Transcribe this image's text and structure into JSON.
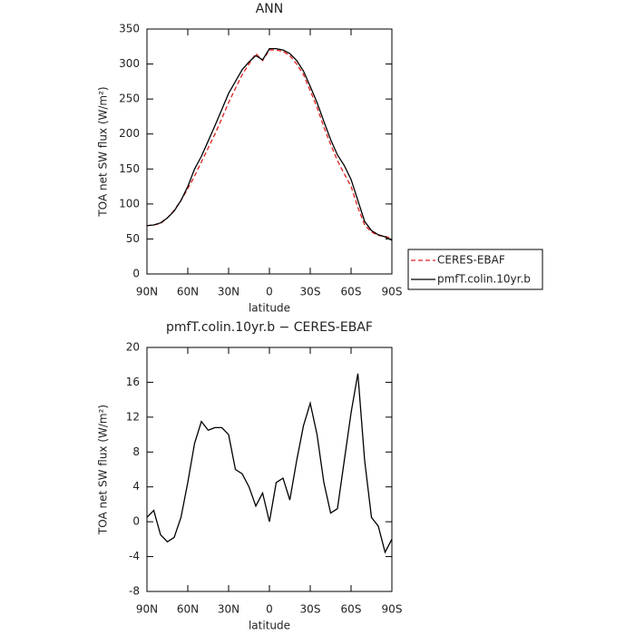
{
  "chart_data": [
    {
      "type": "line",
      "title": "ANN",
      "xlabel": "latitude",
      "ylabel": "TOA net SW flux (W/m²)",
      "x": [
        90,
        85,
        80,
        75,
        70,
        65,
        60,
        55,
        50,
        45,
        40,
        35,
        30,
        25,
        20,
        15,
        10,
        5,
        0,
        -5,
        -10,
        -15,
        -20,
        -25,
        -30,
        -35,
        -40,
        -45,
        -50,
        -55,
        -60,
        -65,
        -70,
        -75,
        -80,
        -85,
        -90
      ],
      "series": [
        {
          "name": "CERES-EBAF",
          "color": "#e02020",
          "style": "dashed",
          "values": [
            69,
            70,
            72,
            80,
            91,
            105,
            122,
            140,
            160,
            180,
            200,
            222,
            245,
            265,
            285,
            300,
            315,
            305,
            320,
            320,
            318,
            312,
            300,
            285,
            262,
            238,
            210,
            185,
            162,
            143,
            125,
            95,
            70,
            60,
            55,
            54,
            50
          ]
        },
        {
          "name": "pmfT.colin.10yr.b",
          "color": "#000000",
          "style": "solid",
          "values": [
            69,
            70,
            73,
            80,
            90,
            105,
            125,
            150,
            168,
            190,
            212,
            235,
            258,
            275,
            292,
            303,
            312,
            306,
            322,
            322,
            320,
            315,
            305,
            290,
            268,
            245,
            218,
            192,
            170,
            155,
            135,
            105,
            75,
            62,
            56,
            53,
            48
          ]
        }
      ],
      "xlim": [
        90,
        -90
      ],
      "xticks": [
        {
          "value": 90,
          "label": "90N"
        },
        {
          "value": 60,
          "label": "60N"
        },
        {
          "value": 30,
          "label": "30N"
        },
        0,
        {
          "value": -30,
          "label": "30S"
        },
        {
          "value": -60,
          "label": "60S"
        },
        {
          "value": -90,
          "label": "90S"
        }
      ],
      "ylim": [
        0,
        350
      ],
      "yticks": [
        0,
        50,
        100,
        150,
        200,
        250,
        300,
        350
      ],
      "legend": "right"
    },
    {
      "type": "line",
      "title": "pmfT.colin.10yr.b − CERES-EBAF",
      "xlabel": "latitude",
      "ylabel": "TOA net SW flux (W/m²)",
      "x": [
        90,
        85,
        80,
        75,
        70,
        65,
        60,
        55,
        50,
        45,
        40,
        35,
        30,
        25,
        20,
        15,
        10,
        5,
        0,
        -5,
        -10,
        -15,
        -20,
        -25,
        -30,
        -35,
        -40,
        -45,
        -50,
        -55,
        -60,
        -65,
        -70,
        -75,
        -80,
        -85,
        -90
      ],
      "series": [
        {
          "color": "#000000",
          "style": "solid",
          "values": [
            0.5,
            1.3,
            -1.5,
            -2.3,
            -1.8,
            0.5,
            4.5,
            9,
            11.5,
            10.5,
            10.8,
            10.8,
            10,
            6,
            5.5,
            4,
            1.8,
            3.3,
            0,
            4.5,
            5,
            2.5,
            7,
            11,
            13.6,
            10,
            4.5,
            1,
            1.5,
            7,
            12.5,
            17,
            7,
            0.5,
            -0.5,
            -3.5,
            -2
          ]
        }
      ],
      "xlim": [
        90,
        -90
      ],
      "xticks": [
        {
          "value": 90,
          "label": "90N"
        },
        {
          "value": 60,
          "label": "60N"
        },
        {
          "value": 30,
          "label": "30N"
        },
        0,
        {
          "value": -30,
          "label": "30S"
        },
        {
          "value": -60,
          "label": "60S"
        },
        {
          "value": -90,
          "label": "90S"
        }
      ],
      "ylim": [
        -8,
        20
      ],
      "yticks": [
        -8,
        -4,
        0,
        4,
        8,
        12,
        16,
        20
      ]
    }
  ]
}
